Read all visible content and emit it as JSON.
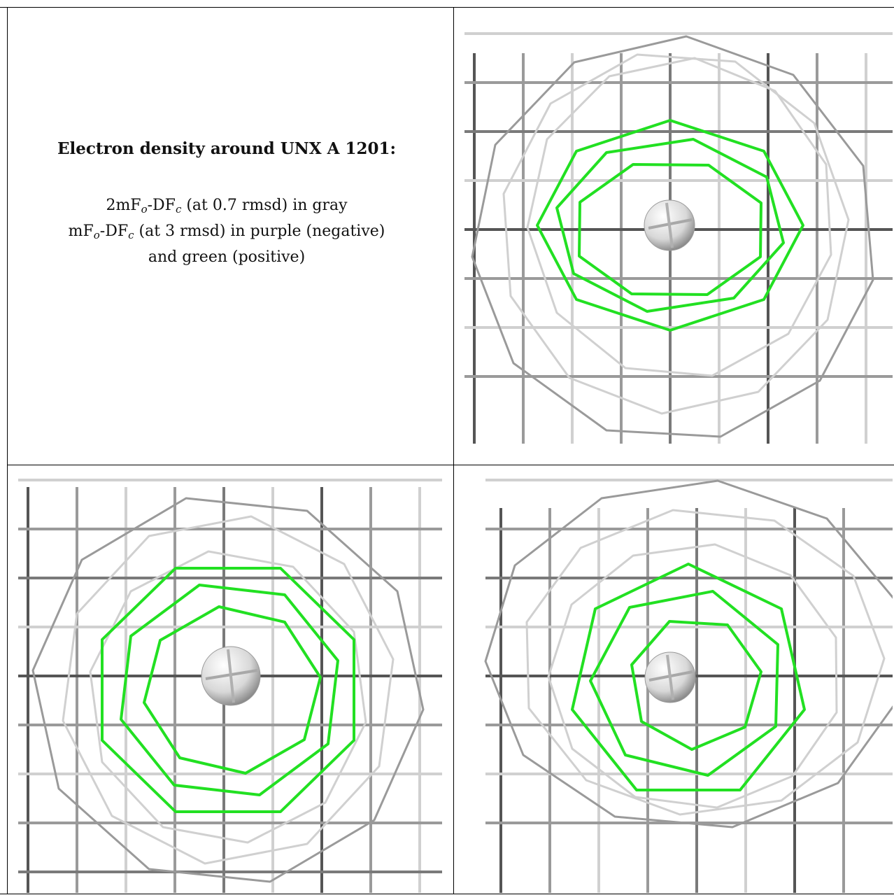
{
  "caption": {
    "title": "Electron density around UNX A 1201:",
    "line1_prefix": "2mF",
    "line1_sub1": "o",
    "line1_mid": "-DF",
    "line1_sub2": "c",
    "line1_suffix": " (at 0.7 rmsd) in gray",
    "line2_prefix": "mF",
    "line2_sub1": "o",
    "line2_mid": "-DF",
    "line2_sub2": "c",
    "line2_suffix": " (at 3 rmsd) in purple (negative)",
    "line3": "and green (positive)"
  },
  "colors": {
    "gray_mesh": "#9a9a9a",
    "gray_dark": "#555555",
    "gray_light": "#d0d0d0",
    "green_mesh": "#22e022",
    "atom": "#d8d8d8"
  }
}
